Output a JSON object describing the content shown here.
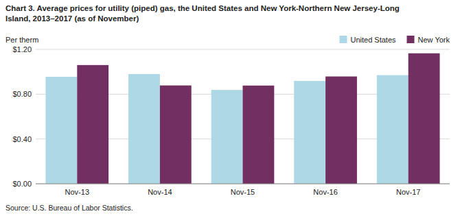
{
  "chart_data": {
    "type": "bar",
    "title": "Chart 3. Average prices for utility (piped) gas, the United States and New York-Northern New Jersey-Long",
    "subtitle": "Island, 2013–2017 (as of November)",
    "ylabel": "Per therm",
    "source": "Source: U.S. Bureau of Labor Statistics.",
    "categories": [
      "Nov-13",
      "Nov-14",
      "Nov-15",
      "Nov-16",
      "Nov-17"
    ],
    "series": [
      {
        "name": "United States",
        "color": "#ADD8E6",
        "values": [
          0.955,
          0.98,
          0.838,
          0.918,
          0.97
        ]
      },
      {
        "name": "New York",
        "color": "#722F62",
        "values": [
          1.06,
          0.878,
          0.877,
          0.958,
          1.165
        ]
      }
    ],
    "ylim": [
      0,
      1.2
    ],
    "yticks": [
      {
        "value": 0.0,
        "label": "$0.00"
      },
      {
        "value": 0.4,
        "label": "$0.40"
      },
      {
        "value": 0.8,
        "label": "$0.80"
      },
      {
        "value": 1.2,
        "label": "$1.20"
      }
    ],
    "grid": true,
    "legend": "top"
  }
}
